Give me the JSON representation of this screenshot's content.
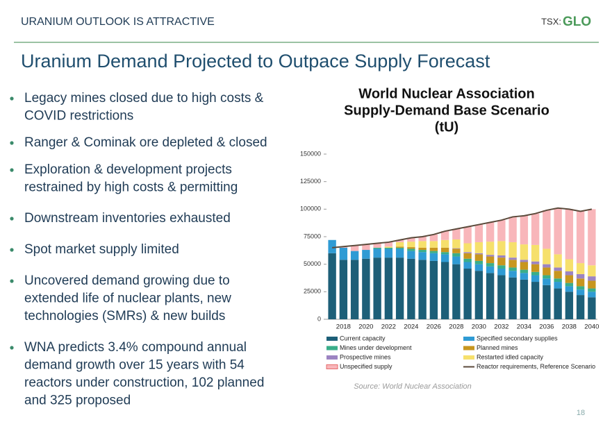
{
  "header": {
    "section": "URANIUM OUTLOOK IS ATTRACTIVE",
    "logo_prefix": "TSX:",
    "logo_name": "GLO"
  },
  "title": "Uranium Demand Projected to Outpace Supply Forecast",
  "bullets": [
    [
      "Legacy mines closed due to high costs &",
      "COVID restrictions"
    ],
    [
      "Ranger & Cominak ore depleted & closed"
    ],
    [
      "Exploration & development projects",
      "restrained by high costs & permitting"
    ],
    [
      "Downstream inventories exhausted"
    ],
    [
      "Spot market supply limited"
    ],
    [
      "Uncovered demand growing due to",
      "extended life of nuclear plants, new",
      "technologies (SMRs) & new builds"
    ],
    [
      "WNA predicts 3.4% compound annual",
      "demand growth over 15 years with 54",
      "reactors under construction, 102 planned",
      "and 325 proposed"
    ]
  ],
  "chart_data": {
    "type": "bar",
    "stacked": true,
    "title": [
      "World Nuclear Association",
      "Supply-Demand Base Scenario",
      "(tU)"
    ],
    "categories": [
      null,
      "2018",
      null,
      "2020",
      null,
      "2022",
      null,
      "2024",
      null,
      "2026",
      null,
      "2028",
      null,
      "2030",
      null,
      "2032",
      null,
      "2034",
      null,
      "2036",
      null,
      "2038",
      null,
      "2040"
    ],
    "ylim": [
      0,
      150000
    ],
    "yticks": [
      0,
      25000,
      50000,
      75000,
      100000,
      125000,
      150000
    ],
    "series": [
      {
        "name": "Current capacity",
        "color": "#1d5f78",
        "values": [
          60000,
          54000,
          54000,
          55000,
          56000,
          56000,
          56000,
          55000,
          54000,
          53000,
          52000,
          50000,
          46000,
          44000,
          42000,
          40000,
          38000,
          36000,
          34000,
          31000,
          28000,
          25000,
          22000,
          20000
        ]
      },
      {
        "name": "Specified secondary supplies",
        "color": "#2f9bd4",
        "values": [
          12000,
          11000,
          8000,
          8000,
          8000,
          8000,
          8000,
          7000,
          7000,
          7000,
          7000,
          7000,
          6000,
          6000,
          6000,
          6000,
          6000,
          6000,
          6000,
          6000,
          6000,
          5000,
          5000,
          5000
        ]
      },
      {
        "name": "Mines under development",
        "color": "#3aae8a",
        "values": [
          0,
          0,
          0,
          0,
          1000,
          1000,
          1000,
          2000,
          2000,
          2000,
          2000,
          3000,
          3000,
          3000,
          3000,
          3000,
          3000,
          3000,
          3000,
          3000,
          3000,
          3000,
          3000,
          3000
        ]
      },
      {
        "name": "Planned mines",
        "color": "#c7961f",
        "values": [
          0,
          0,
          0,
          0,
          0,
          0,
          1000,
          1500,
          2000,
          3000,
          4000,
          4000,
          5000,
          6000,
          6000,
          7000,
          7000,
          7000,
          7000,
          7000,
          7000,
          7000,
          7000,
          7000
        ]
      },
      {
        "name": "Prospective mines",
        "color": "#9c84c2",
        "values": [
          0,
          0,
          0,
          0,
          0,
          0,
          0,
          0,
          0,
          0,
          0,
          500,
          1000,
          1000,
          1500,
          2000,
          2000,
          2000,
          2500,
          3000,
          3000,
          3500,
          4000,
          4000
        ]
      },
      {
        "name": "Restarted idled capacity",
        "color": "#f6e06c",
        "values": [
          0,
          0,
          0,
          0,
          0,
          1000,
          4000,
          5000,
          6000,
          6000,
          7000,
          8000,
          8000,
          10000,
          12000,
          13000,
          14000,
          14000,
          15000,
          14000,
          12000,
          11000,
          10000,
          10000
        ]
      },
      {
        "name": "Unspecified supply",
        "color": "#f8b6ba",
        "values": [
          0,
          1000,
          5000,
          5000,
          4000,
          4000,
          2000,
          3500,
          4000,
          6000,
          8000,
          9500,
          15000,
          16000,
          17500,
          19000,
          23000,
          26000,
          28500,
          35000,
          42000,
          45500,
          47000,
          51000
        ]
      },
      {
        "name": "Reactor requirements, Reference Scenario",
        "color": "#5b4a3b",
        "type": "line",
        "values": [
          65000,
          66000,
          67000,
          68000,
          69000,
          70000,
          72000,
          74000,
          75000,
          77000,
          80000,
          82000,
          84000,
          86000,
          88000,
          90000,
          93000,
          94000,
          96000,
          99000,
          101000,
          100000,
          98000,
          100000
        ]
      }
    ],
    "source": "Source: World Nuclear Association"
  },
  "page_number": "18"
}
